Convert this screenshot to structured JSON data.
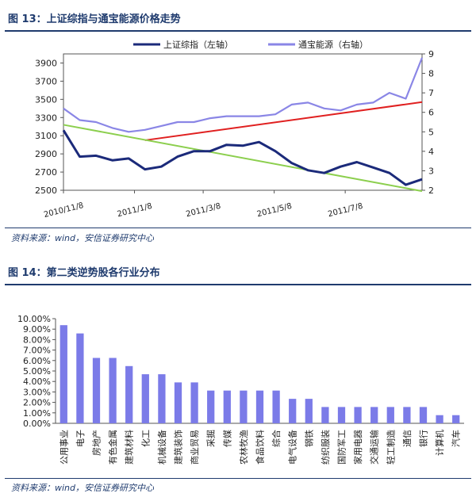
{
  "figure13": {
    "title": "图 13：上证综指与通宝能源价格走势",
    "source": "资料来源：wind，安信证券研究中心"
  },
  "figure14": {
    "title": "图 14：第二类逆势股各行业分布",
    "source": "资料来源：wind，安信证券研究中心"
  },
  "colors": {
    "navy": "#1b2a7a",
    "lavender": "#8a86e6",
    "red_trend": "#e02020",
    "green_trend": "#8ccf4e",
    "bar": "#7b7be8",
    "title": "#1f3b6e"
  },
  "chart_data": [
    {
      "type": "line",
      "legend": [
        "上证综指（左轴）",
        "通宝能源（右轴）"
      ],
      "legend_position": "top-right",
      "x_ticks": [
        "2010/11/8",
        "2011/1/8",
        "2011/3/8",
        "2011/5/8",
        "2011/7/8"
      ],
      "x": [
        "2010/11/8",
        "2010/11/22",
        "2010/12/6",
        "2010/12/20",
        "2011/1/3",
        "2011/1/17",
        "2011/1/31",
        "2011/2/14",
        "2011/2/28",
        "2011/3/14",
        "2011/3/28",
        "2011/4/11",
        "2011/4/25",
        "2011/5/9",
        "2011/5/23",
        "2011/6/6",
        "2011/6/20",
        "2011/7/4",
        "2011/7/18",
        "2011/8/1",
        "2011/8/15",
        "2011/8/29",
        "2011/9/12"
      ],
      "y_left_range": [
        2500,
        4000
      ],
      "y_left_ticks": [
        2500,
        2700,
        2900,
        3100,
        3300,
        3500,
        3700,
        3900
      ],
      "y_right_range": [
        2,
        9
      ],
      "y_right_ticks": [
        2,
        3,
        4,
        5,
        6,
        7,
        8,
        9
      ],
      "series": [
        {
          "name": "上证综指（左轴）",
          "axis": "left",
          "values": [
            3160,
            2870,
            2880,
            2830,
            2850,
            2730,
            2760,
            2870,
            2930,
            2930,
            3000,
            2990,
            3030,
            2930,
            2800,
            2720,
            2690,
            2760,
            2810,
            2750,
            2690,
            2560,
            2620
          ]
        },
        {
          "name": "通宝能源（右轴）",
          "axis": "right",
          "values": [
            6.2,
            5.6,
            5.5,
            5.2,
            5.0,
            5.1,
            5.3,
            5.5,
            5.5,
            5.7,
            5.8,
            5.8,
            5.8,
            5.9,
            6.4,
            6.5,
            6.2,
            6.1,
            6.4,
            6.5,
            7.0,
            6.7,
            8.8
          ]
        }
      ],
      "trendlines": [
        {
          "color": "red",
          "axis": "left",
          "from": [
            "2011/1/17",
            3050
          ],
          "to": [
            "2011/9/12",
            3470
          ]
        },
        {
          "color": "green",
          "axis": "left",
          "from": [
            "2010/11/8",
            3220
          ],
          "to": [
            "2011/9/12",
            2490
          ]
        }
      ]
    },
    {
      "type": "bar",
      "categories": [
        "公用事业",
        "电子",
        "房地产",
        "有色金属",
        "建筑材料",
        "化工",
        "机械设备",
        "建筑装饰",
        "商业贸易",
        "采掘",
        "传媒",
        "农林牧渔",
        "食品饮料",
        "综合",
        "电气设备",
        "钢铁",
        "纺织服装",
        "国防军工",
        "家用电器",
        "交通运输",
        "轻工制造",
        "通信",
        "银行",
        "计算机",
        "汽车"
      ],
      "values": [
        9.38,
        8.59,
        6.25,
        6.25,
        5.47,
        4.69,
        4.69,
        3.91,
        3.91,
        3.13,
        3.13,
        3.13,
        3.13,
        3.13,
        2.34,
        2.34,
        1.56,
        1.56,
        1.56,
        1.56,
        1.56,
        1.56,
        1.56,
        0.78,
        0.78
      ],
      "ylim": [
        0,
        10
      ],
      "y_ticks": [
        "0.00%",
        "1.00%",
        "2.00%",
        "3.00%",
        "4.00%",
        "5.00%",
        "6.00%",
        "7.00%",
        "8.00%",
        "9.00%",
        "10.00%"
      ]
    }
  ]
}
